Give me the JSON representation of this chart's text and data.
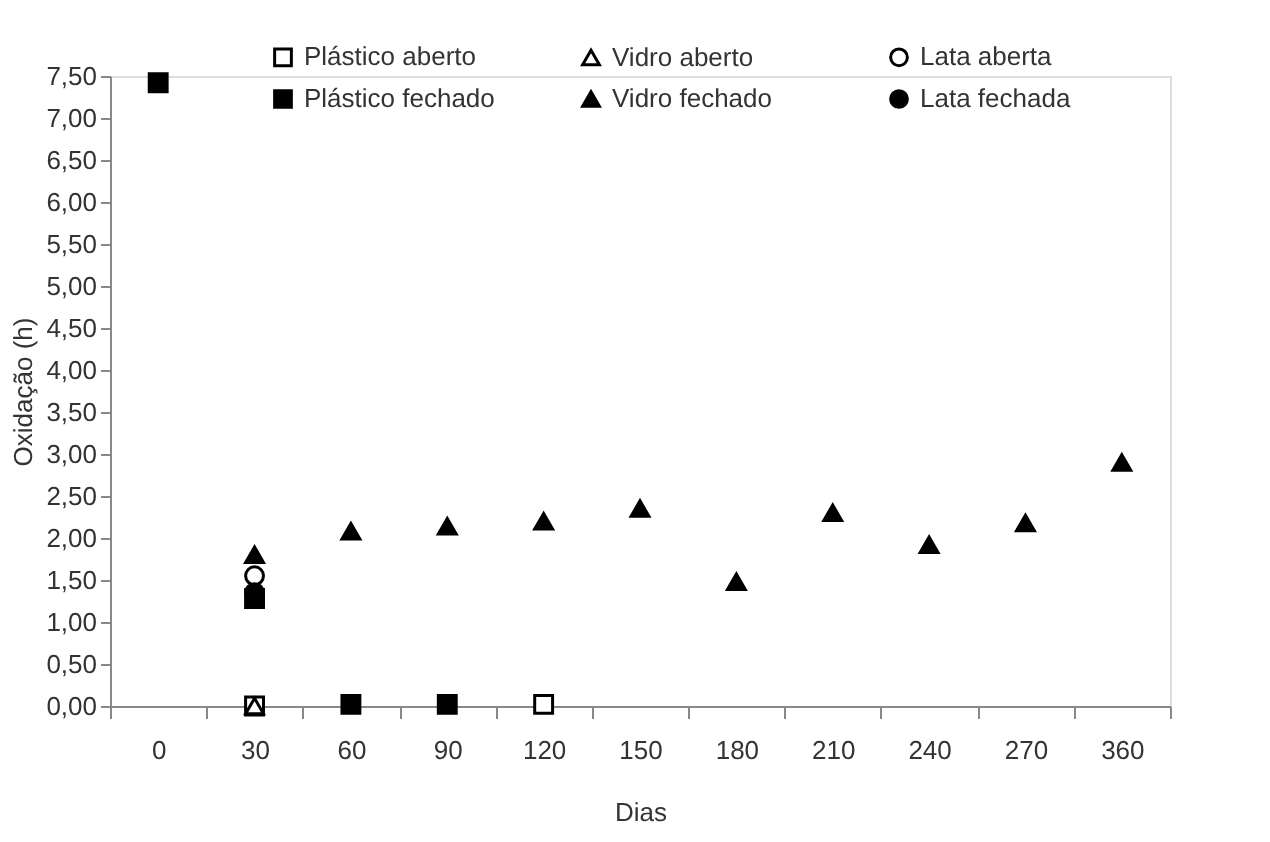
{
  "chart_data": {
    "type": "scatter",
    "xlabel": "Dias",
    "ylabel": "Oxidação (h)",
    "categories": [
      "0",
      "30",
      "60",
      "90",
      "120",
      "150",
      "180",
      "210",
      "240",
      "270",
      "360"
    ],
    "ylim": [
      0,
      7.5
    ],
    "yticks": [
      {
        "value": 0,
        "label": "0,00"
      },
      {
        "value": 0.5,
        "label": "0,50"
      },
      {
        "value": 1,
        "label": "1,00"
      },
      {
        "value": 1.5,
        "label": "1,50"
      },
      {
        "value": 2,
        "label": "2,00"
      },
      {
        "value": 2.5,
        "label": "2,50"
      },
      {
        "value": 3,
        "label": "3,00"
      },
      {
        "value": 3.5,
        "label": "3,50"
      },
      {
        "value": 4,
        "label": "4,00"
      },
      {
        "value": 4.5,
        "label": "4,50"
      },
      {
        "value": 5,
        "label": "5,00"
      },
      {
        "value": 5.5,
        "label": "5,50"
      },
      {
        "value": 6,
        "label": "6,00"
      },
      {
        "value": 6.5,
        "label": "6,50"
      },
      {
        "value": 7,
        "label": "7,00"
      },
      {
        "value": 7.5,
        "label": "7,50"
      }
    ],
    "grid": false,
    "legend": "top",
    "series": [
      {
        "name": "Plástico aberto",
        "color": "#ffffff",
        "marker": "square",
        "values": [
          null,
          0,
          null,
          null,
          0.02,
          null,
          null,
          null,
          null,
          null,
          null
        ]
      },
      {
        "name": "Vidro aberto",
        "color": "#ffffff",
        "marker": "triangle",
        "values": [
          null,
          0,
          null,
          null,
          null,
          null,
          null,
          null,
          null,
          null,
          null
        ]
      },
      {
        "name": "Lata aberta",
        "color": "#ffffff",
        "marker": "circle",
        "values": [
          null,
          1.55,
          null,
          null,
          null,
          null,
          null,
          null,
          null,
          null,
          null
        ]
      },
      {
        "name": "Plástico fechado",
        "color": "#000000",
        "marker": "square",
        "values": [
          7.42,
          1.28,
          0.02,
          0.02,
          null,
          null,
          null,
          null,
          null,
          null,
          null
        ]
      },
      {
        "name": "Vidro fechado",
        "color": "#000000",
        "marker": "triangle",
        "values": [
          null,
          1.8,
          2.08,
          2.14,
          2.2,
          2.35,
          1.48,
          2.3,
          1.92,
          2.18,
          2.9
        ]
      },
      {
        "name": "Lata fechada",
        "color": "#000000",
        "marker": "circle",
        "values": [
          null,
          1.35,
          null,
          null,
          null,
          null,
          null,
          null,
          null,
          null,
          null
        ]
      }
    ]
  }
}
